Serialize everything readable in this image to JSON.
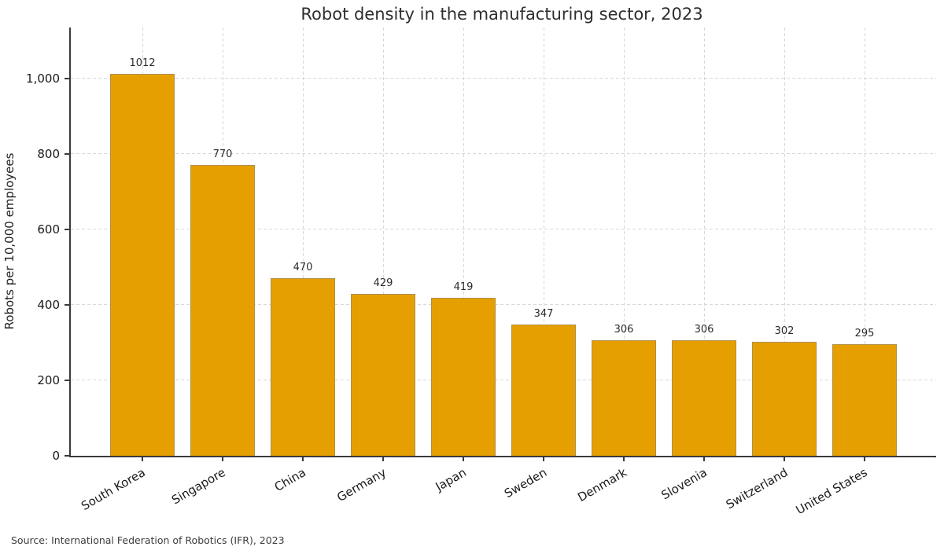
{
  "chart_data": {
    "type": "bar",
    "title": "Robot density in the manufacturing sector, 2023",
    "ylabel": "Robots per 10,000 employees",
    "xlabel": "",
    "source_note": "Source: International Federation of Robotics (IFR), 2023",
    "categories": [
      "South Korea",
      "Singapore",
      "China",
      "Germany",
      "Japan",
      "Sweden",
      "Denmark",
      "Slovenia",
      "Switzerland",
      "United States"
    ],
    "values": [
      1012,
      770,
      470,
      429,
      419,
      347,
      306,
      306,
      302,
      295
    ],
    "bar_value_labels": [
      "1012",
      "770",
      "470",
      "429",
      "419",
      "347",
      "306",
      "306",
      "302",
      "295"
    ],
    "yticks": [
      {
        "value": 0,
        "label": "0"
      },
      {
        "value": 200,
        "label": "200"
      },
      {
        "value": 400,
        "label": "400"
      },
      {
        "value": 600,
        "label": "600"
      },
      {
        "value": 800,
        "label": "800"
      },
      {
        "value": 1000,
        "label": "1,000"
      }
    ],
    "ylim": [
      0,
      1135
    ],
    "grid": "dashed, horizontal and vertical (at bar centers)",
    "legend_position": "none",
    "xtick_rotation_deg": 30,
    "colors": {
      "bar_fill": "#E69F00",
      "bar_edge": "#828282",
      "grid": "#d8d8d8",
      "axis": "#3a3a3a",
      "title_text": "#2e2e2e",
      "tick_text": "#1a1a1a",
      "source_text": "#3d3d3d",
      "background": "#ffffff"
    }
  }
}
